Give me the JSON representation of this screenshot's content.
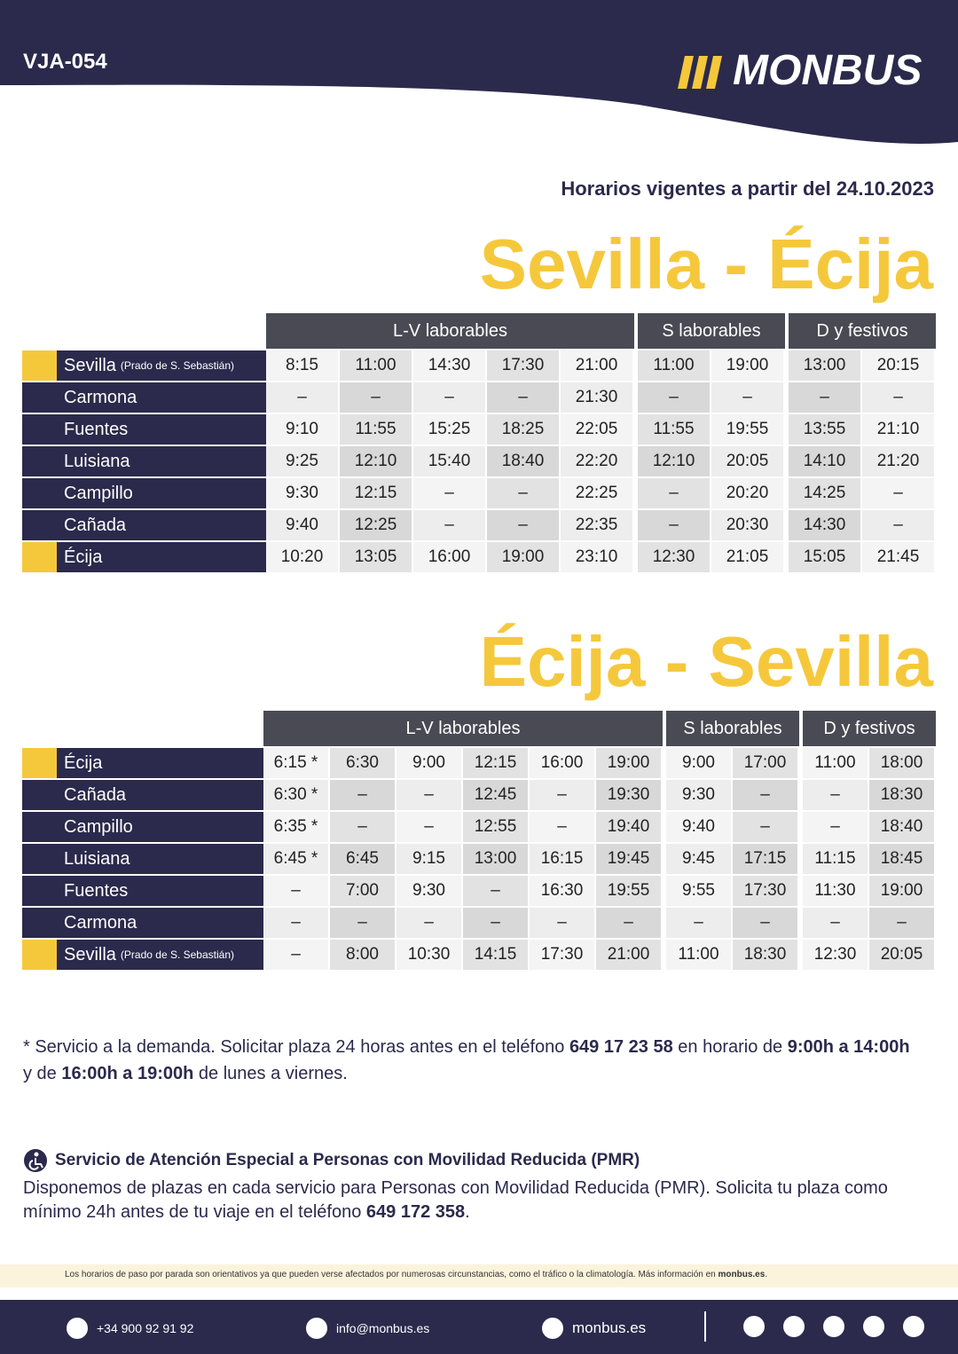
{
  "header": {
    "code": "VJA-054",
    "brand": "MONBUS"
  },
  "valid_from": "Horarios vigentes a partir del 24.10.2023",
  "timetables": [
    {
      "title": "Sevilla - Écija",
      "groups": [
        "L-V laborables",
        "S laborables",
        "D y festivos"
      ],
      "rows": [
        {
          "stop": "Sevilla",
          "note": "(Prado de S. Sebastián)",
          "times": [
            [
              "8:15",
              "11:00",
              "14:30",
              "17:30",
              "21:00"
            ],
            [
              "11:00",
              "19:00"
            ],
            [
              "13:00",
              "20:15"
            ]
          ]
        },
        {
          "stop": "Carmona",
          "times": [
            [
              "–",
              "–",
              "–",
              "–",
              "21:30"
            ],
            [
              "–",
              "–"
            ],
            [
              "–",
              "–"
            ]
          ]
        },
        {
          "stop": "Fuentes",
          "times": [
            [
              "9:10",
              "11:55",
              "15:25",
              "18:25",
              "22:05"
            ],
            [
              "11:55",
              "19:55"
            ],
            [
              "13:55",
              "21:10"
            ]
          ]
        },
        {
          "stop": "Luisiana",
          "times": [
            [
              "9:25",
              "12:10",
              "15:40",
              "18:40",
              "22:20"
            ],
            [
              "12:10",
              "20:05"
            ],
            [
              "14:10",
              "21:20"
            ]
          ]
        },
        {
          "stop": "Campillo",
          "times": [
            [
              "9:30",
              "12:15",
              "–",
              "–",
              "22:25"
            ],
            [
              "–",
              "20:20"
            ],
            [
              "14:25",
              "–"
            ]
          ]
        },
        {
          "stop": "Cañada",
          "times": [
            [
              "9:40",
              "12:25",
              "–",
              "–",
              "22:35"
            ],
            [
              "–",
              "20:30"
            ],
            [
              "14:30",
              "–"
            ]
          ]
        },
        {
          "stop": "Écija",
          "times": [
            [
              "10:20",
              "13:05",
              "16:00",
              "19:00",
              "23:10"
            ],
            [
              "12:30",
              "21:05"
            ],
            [
              "15:05",
              "21:45"
            ]
          ]
        }
      ]
    },
    {
      "title": "Écija - Sevilla",
      "groups": [
        "L-V laborables",
        "S laborables",
        "D y festivos"
      ],
      "rows": [
        {
          "stop": "Écija",
          "times": [
            [
              "6:15 *",
              "6:30",
              "9:00",
              "12:15",
              "16:00",
              "19:00"
            ],
            [
              "9:00",
              "17:00"
            ],
            [
              "11:00",
              "18:00"
            ]
          ]
        },
        {
          "stop": "Cañada",
          "times": [
            [
              "6:30 *",
              "–",
              "–",
              "12:45",
              "–",
              "19:30"
            ],
            [
              "9:30",
              "–"
            ],
            [
              "–",
              "18:30"
            ]
          ]
        },
        {
          "stop": "Campillo",
          "times": [
            [
              "6:35 *",
              "–",
              "–",
              "12:55",
              "–",
              "19:40"
            ],
            [
              "9:40",
              "–"
            ],
            [
              "–",
              "18:40"
            ]
          ]
        },
        {
          "stop": "Luisiana",
          "times": [
            [
              "6:45 *",
              "6:45",
              "9:15",
              "13:00",
              "16:15",
              "19:45"
            ],
            [
              "9:45",
              "17:15"
            ],
            [
              "11:15",
              "18:45"
            ]
          ]
        },
        {
          "stop": "Fuentes",
          "times": [
            [
              "–",
              "7:00",
              "9:30",
              "–",
              "16:30",
              "19:55"
            ],
            [
              "9:55",
              "17:30"
            ],
            [
              "11:30",
              "19:00"
            ]
          ]
        },
        {
          "stop": "Carmona",
          "times": [
            [
              "–",
              "–",
              "–",
              "–",
              "–",
              "–"
            ],
            [
              "–",
              "–"
            ],
            [
              "–",
              "–"
            ]
          ]
        },
        {
          "stop": "Sevilla",
          "note": "(Prado de S. Sebastián)",
          "times": [
            [
              "–",
              "8:00",
              "10:30",
              "14:15",
              "17:30",
              "21:00"
            ],
            [
              "11:00",
              "18:30"
            ],
            [
              "12:30",
              "20:05"
            ]
          ]
        }
      ]
    }
  ],
  "footnote": [
    {
      "text": "* Servicio a la demanda. Solicitar plaza 24 horas antes en el teléfono "
    },
    {
      "text": "649 17 23 58",
      "bold": true
    },
    {
      "text": " en horario de "
    },
    {
      "text": "9:00h a 14:00h",
      "bold": true
    },
    {
      "text": " y de "
    },
    {
      "text": "16:00h a 19:00h",
      "bold": true
    },
    {
      "text": " de lunes a viernes."
    }
  ],
  "pmr": {
    "title": "Servicio de Atención Especial a Personas con Movilidad Reducida (PMR)",
    "body": [
      {
        "text": "Disponemos de plazas en cada servicio para Personas con Movilidad Reducida (PMR). Solicita tu plaza como mínimo 24h antes de tu viaje en el teléfono "
      },
      {
        "text": "649 172 358",
        "bold": true
      },
      {
        "text": "."
      }
    ]
  },
  "disclaimer": [
    {
      "text": "Los horarios de paso por parada son orientativos ya que pueden verse afectados por numerosas circunstancias, como el tráfico o la climatología. Más información en "
    },
    {
      "text": "monbus.es",
      "bold": true
    },
    {
      "text": "."
    }
  ],
  "contacts": {
    "phone": "+34 900 92 91 92",
    "email": "info@monbus.es",
    "web": "monbus.es"
  }
}
